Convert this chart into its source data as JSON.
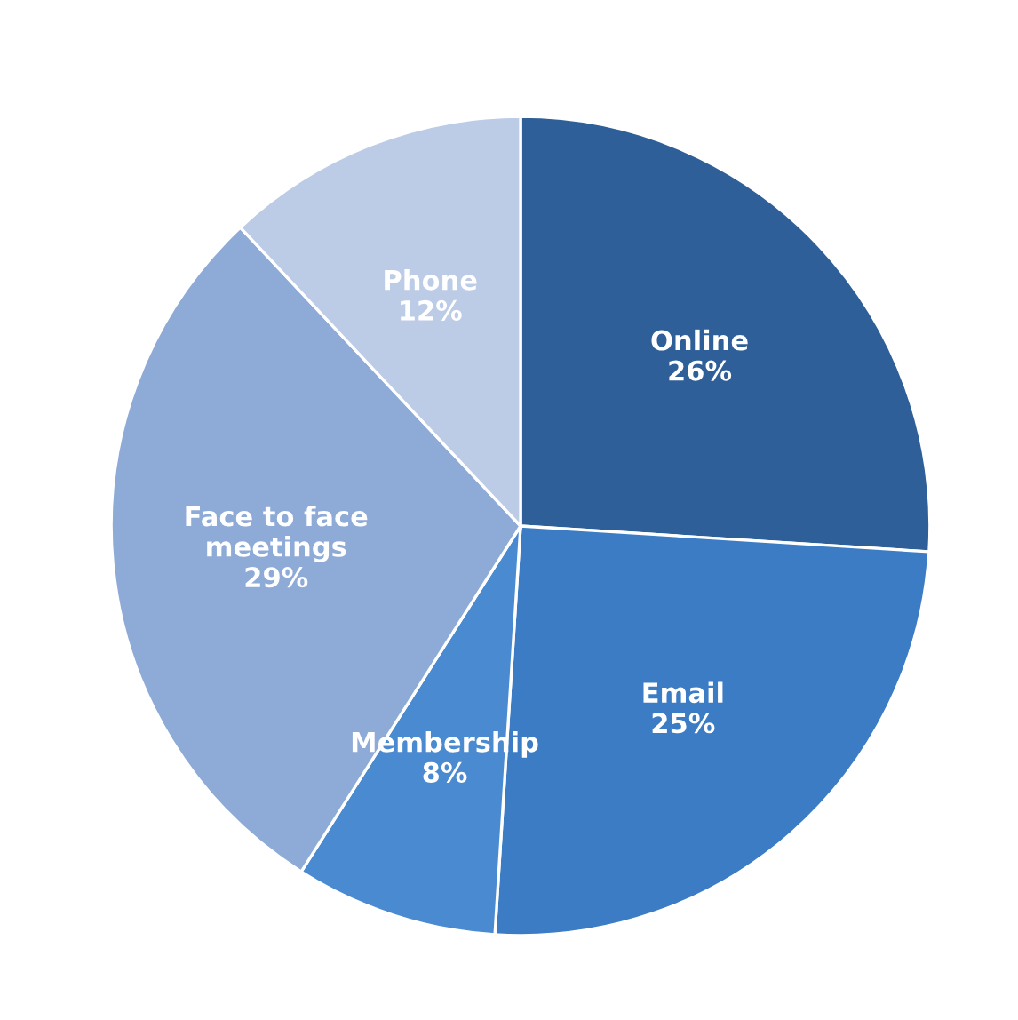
{
  "chart_data": {
    "type": "pie",
    "categories": [
      "Online",
      "Email",
      "Membership",
      "Face to face\nmeetings",
      "Phone"
    ],
    "values": [
      26,
      25,
      8,
      29,
      12
    ],
    "value_labels": [
      "26%",
      "25%",
      "8%",
      "29%",
      "12%"
    ],
    "colors": [
      "#2f5f98",
      "#3b7cc4",
      "#4a8ad0",
      "#8eaad6",
      "#bccbe6"
    ],
    "legend": false
  }
}
